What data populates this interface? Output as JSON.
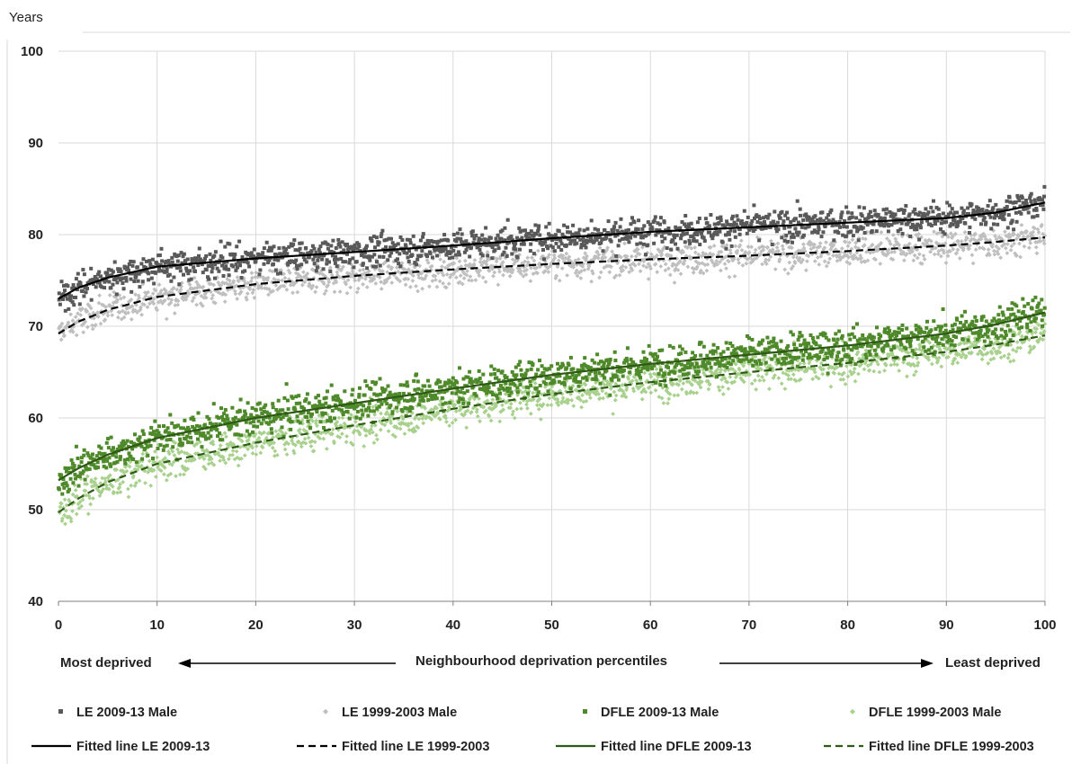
{
  "chart_data": {
    "type": "scatter",
    "y_units_label": "Years",
    "xlabel": "Neighbourhood deprivation percentiles",
    "left_annotation": "Most deprived",
    "right_annotation": "Least deprived",
    "xlim": [
      0,
      100
    ],
    "ylim": [
      40,
      100
    ],
    "x_ticks": [
      "0",
      "10",
      "20",
      "30",
      "40",
      "50",
      "60",
      "70",
      "80",
      "90",
      "100"
    ],
    "y_ticks": [
      "40",
      "50",
      "60",
      "70",
      "80",
      "90",
      "100"
    ],
    "grid": true,
    "legend_position": "bottom",
    "series": [
      {
        "name": "LE 2009-13 Male",
        "kind": "scatter",
        "marker": "square",
        "color": "#595959",
        "trend_x": [
          0,
          2,
          5,
          10,
          20,
          30,
          40,
          50,
          60,
          70,
          80,
          90,
          95,
          100
        ],
        "trend_y": [
          73,
          74.2,
          75.3,
          76.5,
          77.4,
          78.1,
          78.8,
          79.6,
          80.3,
          80.8,
          81.3,
          81.8,
          82.4,
          83.5
        ],
        "spread": 1.5
      },
      {
        "name": "LE 1999-2003 Male",
        "kind": "scatter",
        "marker": "diamond",
        "color": "#bfbfbf",
        "trend_x": [
          0,
          2,
          5,
          10,
          20,
          30,
          40,
          50,
          60,
          70,
          80,
          90,
          95,
          100
        ],
        "trend_y": [
          69.2,
          70.5,
          71.8,
          73.2,
          74.6,
          75.5,
          76.2,
          76.8,
          77.3,
          77.7,
          78.2,
          78.8,
          79.2,
          79.7
        ],
        "spread": 1.5
      },
      {
        "name": "DFLE 2009-13 Male",
        "kind": "scatter",
        "marker": "square",
        "color": "#4f8a2a",
        "trend_x": [
          0,
          2,
          5,
          10,
          20,
          30,
          40,
          50,
          60,
          70,
          80,
          90,
          95,
          100
        ],
        "trend_y": [
          53.2,
          54.5,
          56,
          57.8,
          60,
          61.6,
          63.2,
          64.7,
          65.9,
          66.9,
          67.9,
          69.2,
          70.2,
          71.5
        ],
        "spread": 1.7
      },
      {
        "name": "DFLE 1999-2003 Male",
        "kind": "scatter",
        "marker": "diamond",
        "color": "#a9d18e",
        "trend_x": [
          0,
          2,
          5,
          10,
          20,
          30,
          40,
          50,
          60,
          70,
          80,
          90,
          95,
          100
        ],
        "trend_y": [
          49.7,
          51.2,
          53,
          55,
          57.3,
          59.2,
          61,
          62.6,
          63.9,
          65,
          66,
          67.2,
          68,
          69
        ],
        "spread": 1.7
      },
      {
        "name": "Fitted line LE 2009-13",
        "kind": "line",
        "dash": "solid",
        "color": "#000000",
        "x": [
          0,
          2,
          5,
          10,
          20,
          30,
          40,
          50,
          60,
          70,
          80,
          90,
          95,
          100
        ],
        "y": [
          73,
          74.2,
          75.3,
          76.5,
          77.4,
          78.1,
          78.8,
          79.6,
          80.3,
          80.8,
          81.3,
          81.8,
          82.4,
          83.5
        ]
      },
      {
        "name": "Fitted line LE 1999-2003",
        "kind": "line",
        "dash": "dashed",
        "color": "#000000",
        "x": [
          0,
          2,
          5,
          10,
          20,
          30,
          40,
          50,
          60,
          70,
          80,
          90,
          95,
          100
        ],
        "y": [
          69.2,
          70.5,
          71.8,
          73.2,
          74.6,
          75.5,
          76.2,
          76.8,
          77.3,
          77.7,
          78.2,
          78.8,
          79.2,
          79.7
        ]
      },
      {
        "name": "Fitted line DFLE 2009-13",
        "kind": "line",
        "dash": "solid",
        "color": "#2e5a16",
        "x": [
          0,
          2,
          5,
          10,
          20,
          30,
          40,
          50,
          60,
          70,
          80,
          90,
          95,
          100
        ],
        "y": [
          53.2,
          54.5,
          56,
          57.8,
          60,
          61.6,
          63.2,
          64.7,
          65.9,
          66.9,
          67.9,
          69.2,
          70.2,
          71.5
        ]
      },
      {
        "name": "Fitted line DFLE 1999-2003",
        "kind": "line",
        "dash": "dashed",
        "color": "#2e5a16",
        "x": [
          0,
          2,
          5,
          10,
          20,
          30,
          40,
          50,
          60,
          70,
          80,
          90,
          95,
          100
        ],
        "y": [
          49.7,
          51.2,
          53,
          55,
          57.3,
          59.2,
          61,
          62.6,
          63.9,
          65,
          66,
          67.2,
          68,
          69
        ]
      }
    ]
  }
}
